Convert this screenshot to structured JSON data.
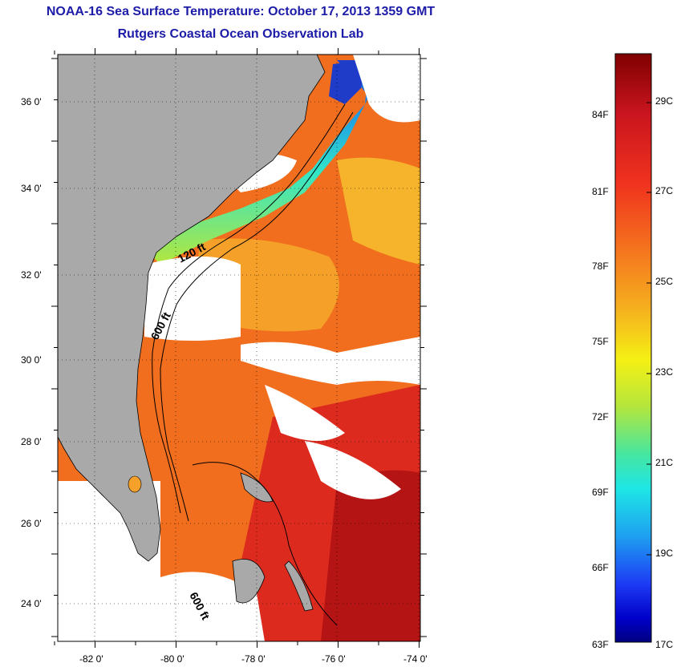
{
  "header": {
    "title": "NOAA-16 Sea Surface Temperature:  October 17, 2013 1359 GMT",
    "subtitle": "Rutgers Coastal Ocean Observation Lab"
  },
  "map": {
    "lat_labels": [
      "36 0'",
      "34 0'",
      "32 0'",
      "30 0'",
      "28 0'",
      "26 0'",
      "24 0'"
    ],
    "lon_labels": [
      "-82 0'",
      "-80 0'",
      "-78 0'",
      "-76 0'",
      "-74 0'"
    ],
    "contours": [
      "120 ft",
      "600 ft",
      "600 ft"
    ],
    "colors": {
      "land": "#a9a9a9",
      "cloud": "#ffffff",
      "sst_warm": "#f0641e",
      "sst_hot": "#d2141e",
      "sst_mid": "#f5c81e",
      "sst_cool": "#32e6c8",
      "sst_cold": "#1e3cc8"
    }
  },
  "colorbar": {
    "fahrenheit_labels": [
      "84F",
      "81F",
      "78F",
      "75F",
      "72F",
      "69F",
      "66F",
      "63F"
    ],
    "celsius_labels": [
      "29C",
      "27C",
      "25C",
      "23C",
      "21C",
      "19C",
      "17C"
    ],
    "stops": [
      "#7f0000",
      "#d4141e",
      "#f5641e",
      "#f59632",
      "#f0d21e",
      "#f5f014",
      "#b4e63c",
      "#5ae6a0",
      "#1ee6e6",
      "#1e96e6",
      "#1e3cf5",
      "#0000b4",
      "#00007f"
    ]
  }
}
